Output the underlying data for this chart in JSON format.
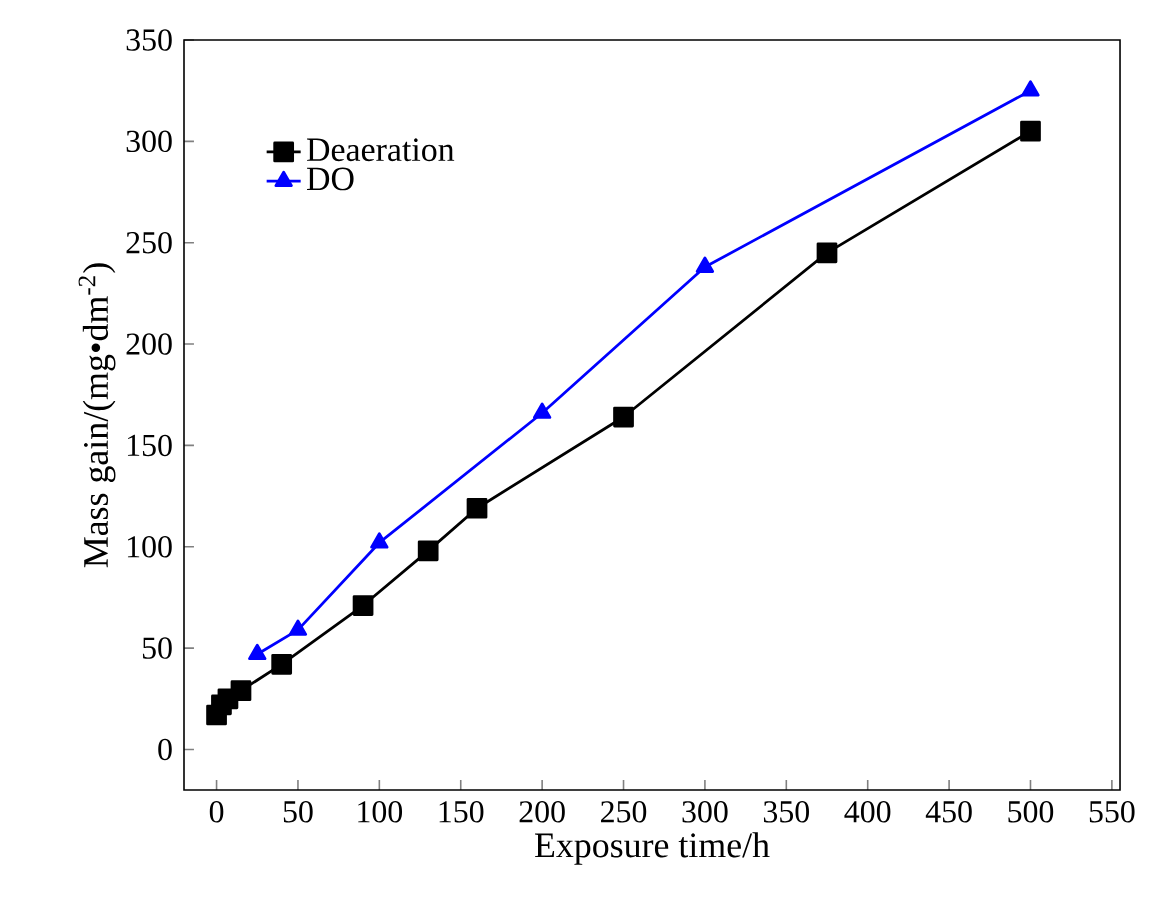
{
  "chart_data": {
    "type": "line",
    "xlabel": "Exposure time/h",
    "ylabel": "Mass gain/(mg•dm$^{-2}$)",
    "x": [
      0,
      3,
      7,
      15,
      40,
      90,
      130,
      160,
      250,
      375,
      500
    ],
    "series": [
      {
        "name": "Deaeration",
        "color": "#000000",
        "marker": "square",
        "values": [
          17,
          22,
          25,
          29,
          42,
          71,
          98,
          119,
          164,
          245,
          305
        ]
      },
      {
        "name": "DO",
        "color": "#0000ff",
        "marker": "triangle",
        "x": [
          25,
          50,
          100,
          200,
          300,
          500
        ],
        "values": [
          47,
          59,
          102,
          166,
          238,
          325
        ]
      }
    ],
    "xlim": [
      -20,
      555
    ],
    "ylim": [
      -20,
      350
    ],
    "xticks": [
      0,
      50,
      100,
      150,
      200,
      250,
      300,
      350,
      400,
      450,
      500,
      550
    ],
    "yticks": [
      0,
      50,
      100,
      150,
      200,
      250,
      300,
      350
    ],
    "legend": "top left",
    "line_style": "solid",
    "grid": false
  }
}
